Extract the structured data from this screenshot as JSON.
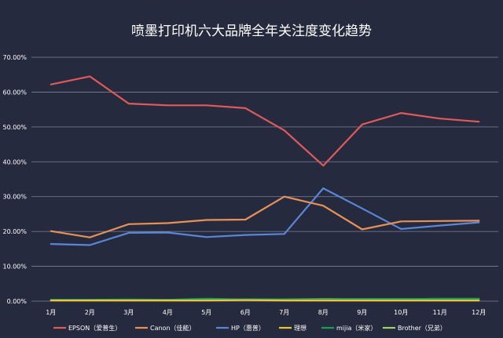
{
  "chart_data": {
    "type": "line",
    "title": "喷墨打印机六大品牌全年关注度变化趋势",
    "xlabel": "",
    "ylabel": "",
    "ylim": [
      0,
      70
    ],
    "y_ticks": [
      "0.00%",
      "10.00%",
      "20.00%",
      "30.00%",
      "40.00%",
      "50.00%",
      "60.00%",
      "70.00%"
    ],
    "y_tick_values": [
      0,
      10,
      20,
      30,
      40,
      50,
      60,
      70
    ],
    "grid": true,
    "legend_position": "bottom",
    "categories": [
      "1月",
      "2月",
      "3月",
      "4月",
      "5月",
      "6月",
      "7月",
      "8月",
      "9月",
      "10月",
      "11月",
      "12月"
    ],
    "series": [
      {
        "name": "EPSON（爱普生）",
        "color": "#e05a5a",
        "values": [
          62.2,
          64.5,
          56.7,
          56.2,
          56.2,
          55.4,
          49.0,
          38.9,
          50.7,
          54.0,
          52.4,
          51.5
        ]
      },
      {
        "name": "Canon（佳能）",
        "color": "#e89157",
        "values": [
          20.1,
          18.3,
          22.1,
          22.4,
          23.3,
          23.4,
          30.0,
          27.4,
          20.6,
          22.9,
          23.0,
          23.1
        ]
      },
      {
        "name": "HP（惠普）",
        "color": "#5b86d6",
        "values": [
          16.4,
          16.1,
          19.6,
          19.7,
          18.4,
          19.0,
          19.3,
          32.4,
          26.6,
          20.7,
          21.7,
          22.6
        ]
      },
      {
        "name": "理想",
        "color": "#f1c232",
        "values": [
          0.2,
          0.2,
          0.2,
          0.2,
          0.2,
          0.3,
          0.2,
          0.2,
          0.2,
          0.2,
          0.2,
          0.2
        ]
      },
      {
        "name": "mijia（米家）",
        "color": "#1a9e5a",
        "values": [
          0.4,
          0.4,
          0.5,
          0.4,
          0.7,
          0.5,
          0.5,
          0.5,
          0.6,
          0.6,
          0.7,
          0.7
        ]
      },
      {
        "name": "Brother（兄弟）",
        "color": "#9ed36a",
        "values": [
          0.3,
          0.3,
          0.3,
          0.3,
          0.4,
          0.5,
          0.5,
          0.6,
          0.6,
          0.6,
          0.6,
          0.6
        ]
      }
    ]
  }
}
